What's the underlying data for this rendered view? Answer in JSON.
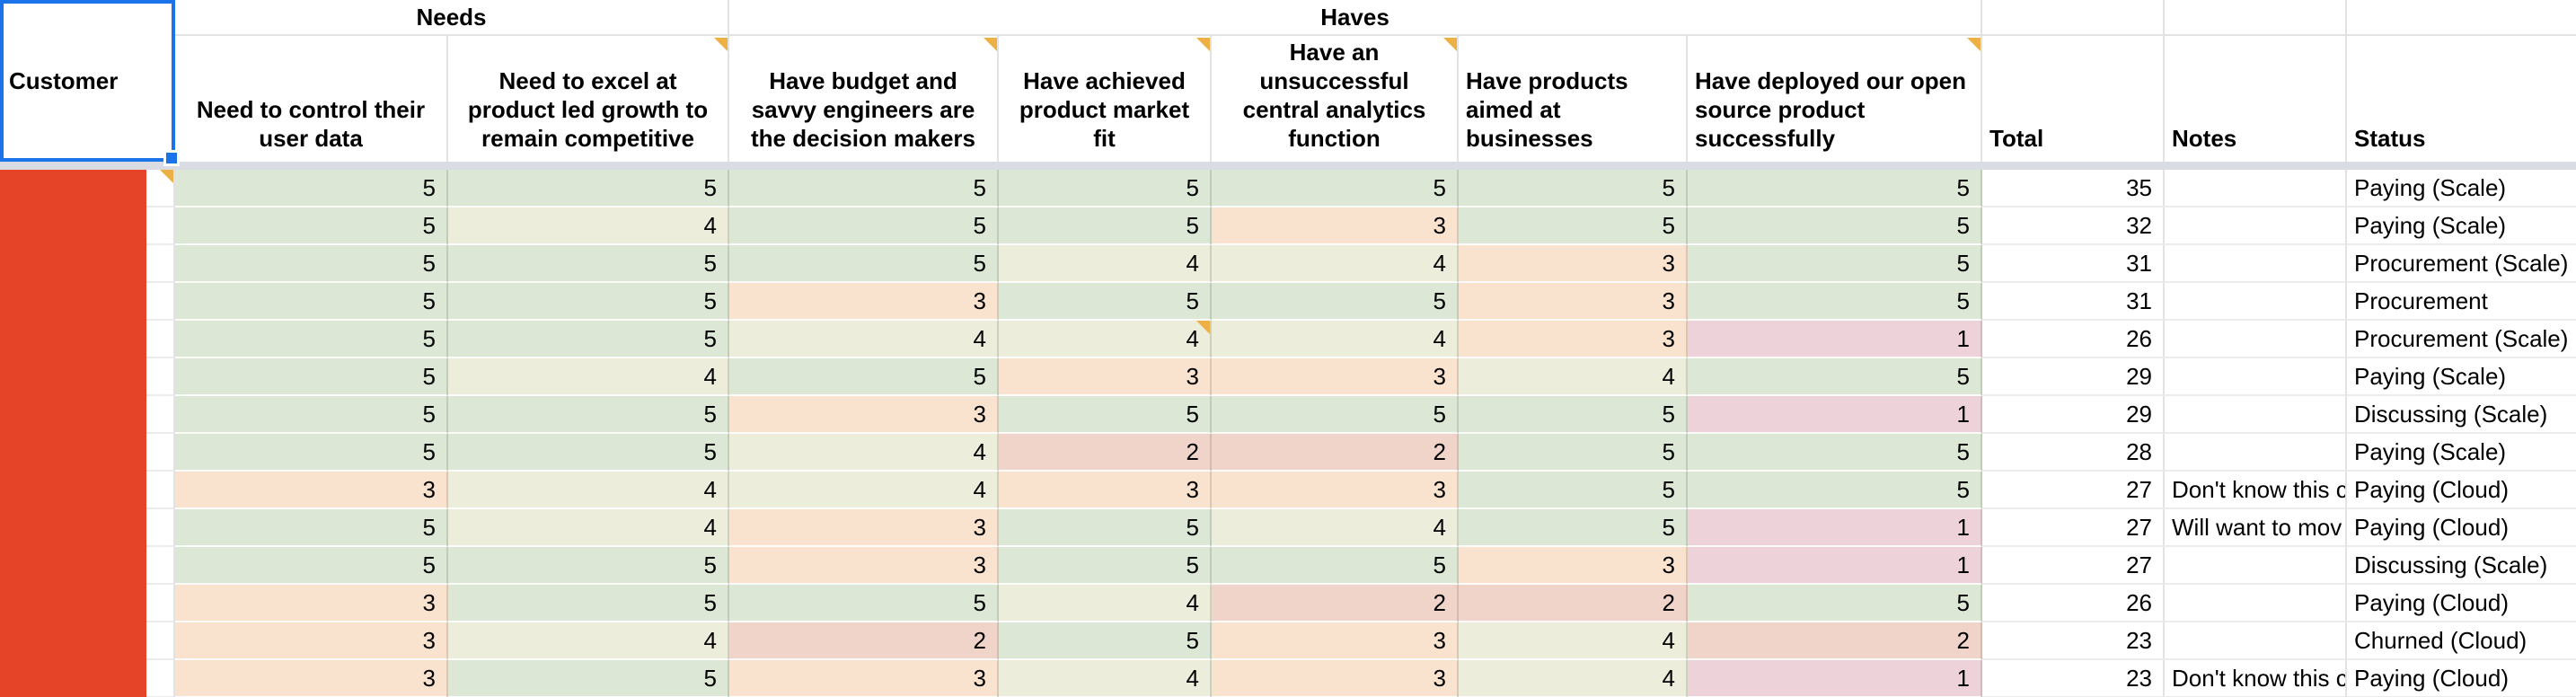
{
  "sheet": {
    "corner_header": "Customer",
    "group_headers": [
      {
        "label": "Needs"
      },
      {
        "label": "Haves"
      }
    ],
    "score_columns": [
      {
        "label": "Need to control their user data",
        "align": "center",
        "has_note": false
      },
      {
        "label": "Need to excel at product led growth to remain competitive",
        "align": "center",
        "has_note": true
      },
      {
        "label": "Have budget and savvy engineers are the decision makers",
        "align": "center",
        "has_note": true
      },
      {
        "label": "Have achieved product market fit",
        "align": "center",
        "has_note": true
      },
      {
        "label": "Have an unsuccessful central analytics function",
        "align": "center",
        "has_note": true
      },
      {
        "label": "Have products aimed at businesses",
        "align": "left",
        "has_note": false
      },
      {
        "label": "Have deployed our open source product successfully",
        "align": "left",
        "has_note": true
      }
    ],
    "meta_columns": [
      "Total",
      "Notes",
      "Status"
    ],
    "rows": [
      {
        "scores": [
          5,
          5,
          5,
          5,
          5,
          5,
          5
        ],
        "total": 35,
        "notes": "",
        "status": "Paying (Scale)",
        "customer_note": true,
        "score_note_index": null
      },
      {
        "scores": [
          5,
          4,
          5,
          5,
          3,
          5,
          5
        ],
        "total": 32,
        "notes": "",
        "status": "Paying (Scale)",
        "customer_note": false,
        "score_note_index": null
      },
      {
        "scores": [
          5,
          5,
          5,
          4,
          4,
          3,
          5
        ],
        "total": 31,
        "notes": "",
        "status": "Procurement (Scale)",
        "customer_note": false,
        "score_note_index": null
      },
      {
        "scores": [
          5,
          5,
          3,
          5,
          5,
          3,
          5
        ],
        "total": 31,
        "notes": "",
        "status": "Procurement",
        "customer_note": false,
        "score_note_index": null
      },
      {
        "scores": [
          5,
          5,
          4,
          4,
          4,
          3,
          1
        ],
        "total": 26,
        "notes": "",
        "status": "Procurement (Scale)",
        "customer_note": false,
        "score_note_index": 3
      },
      {
        "scores": [
          5,
          4,
          5,
          3,
          3,
          4,
          5
        ],
        "total": 29,
        "notes": "",
        "status": "Paying (Scale)",
        "customer_note": false,
        "score_note_index": null
      },
      {
        "scores": [
          5,
          5,
          3,
          5,
          5,
          5,
          1
        ],
        "total": 29,
        "notes": "",
        "status": "Discussing (Scale)",
        "customer_note": false,
        "score_note_index": null
      },
      {
        "scores": [
          5,
          5,
          4,
          2,
          2,
          5,
          5
        ],
        "total": 28,
        "notes": "",
        "status": "Paying (Scale)",
        "customer_note": false,
        "score_note_index": null
      },
      {
        "scores": [
          3,
          4,
          4,
          3,
          3,
          5,
          5
        ],
        "total": 27,
        "notes": "Don't know this c",
        "status": "Paying (Cloud)",
        "customer_note": false,
        "score_note_index": null
      },
      {
        "scores": [
          5,
          4,
          3,
          5,
          4,
          5,
          1
        ],
        "total": 27,
        "notes": "Will want to mov",
        "status": "Paying (Cloud)",
        "customer_note": false,
        "score_note_index": null
      },
      {
        "scores": [
          5,
          5,
          3,
          5,
          5,
          3,
          1
        ],
        "total": 27,
        "notes": "",
        "status": "Discussing (Scale)",
        "customer_note": false,
        "score_note_index": null
      },
      {
        "scores": [
          3,
          5,
          5,
          4,
          2,
          2,
          5
        ],
        "total": 26,
        "notes": "",
        "status": "Paying (Cloud)",
        "customer_note": false,
        "score_note_index": null
      },
      {
        "scores": [
          3,
          4,
          2,
          5,
          3,
          4,
          2
        ],
        "total": 23,
        "notes": "",
        "status": "Churned (Cloud)",
        "customer_note": false,
        "score_note_index": null
      },
      {
        "scores": [
          3,
          5,
          3,
          4,
          3,
          4,
          1
        ],
        "total": 23,
        "notes": "Don't know this c",
        "status": "Paying (Cloud)",
        "customer_note": false,
        "score_note_index": null
      }
    ],
    "colors": {
      "selection_blue": "#1a73e8",
      "note_orange": "#edb045",
      "redaction_red": "#e54428",
      "frozen_divider": "#d9dce3",
      "score_5": "#dce7d5",
      "score_4": "#ecedda",
      "score_3": "#f9e3cf",
      "score_2": "#f0d4c9",
      "score_1": "#eed2da"
    }
  }
}
